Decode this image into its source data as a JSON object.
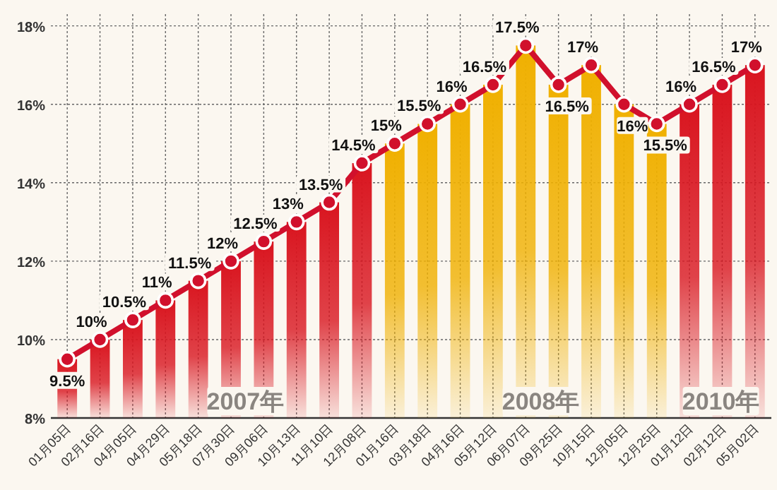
{
  "chart_data": {
    "type": "bar",
    "categories": [
      "01月05日",
      "02月16日",
      "04月05日",
      "04月29日",
      "05月18日",
      "07月30日",
      "09月06日",
      "10月13日",
      "11月10日",
      "12月08日",
      "01月16日",
      "03月18日",
      "04月16日",
      "05月12日",
      "06月07日",
      "09月25日",
      "10月15日",
      "12月05日",
      "12月25日",
      "01月12日",
      "02月12日",
      "05月02日"
    ],
    "series": [
      {
        "values": [
          9.5,
          10,
          10.5,
          11,
          11.5,
          12,
          12.5,
          13,
          13.5,
          14.5,
          15,
          15.5,
          16,
          16.5,
          17.5,
          16.5,
          17,
          16,
          15.5,
          16,
          16.5,
          17
        ],
        "colors": [
          "#d9151f",
          "#d9151f",
          "#d9151f",
          "#d9151f",
          "#d9151f",
          "#d9151f",
          "#d9151f",
          "#d9151f",
          "#d9151f",
          "#d9151f",
          "#f0b000",
          "#f0b000",
          "#f0b000",
          "#f0b000",
          "#f0b000",
          "#f0b000",
          "#f0b000",
          "#f0b000",
          "#f0b000",
          "#d9151f",
          "#d9151f",
          "#d9151f"
        ]
      },
      {
        "type": "line",
        "color": "#d1102c",
        "marker": "circle",
        "values": [
          9.5,
          10,
          10.5,
          11,
          11.5,
          12,
          12.5,
          13,
          13.5,
          14.5,
          15,
          15.5,
          16,
          16.5,
          17.5,
          16.5,
          17,
          16,
          15.5,
          16,
          16.5,
          17
        ],
        "value_labels": [
          "9.5%",
          "10%",
          "10.5%",
          "11%",
          "11.5%",
          "12%",
          "12.5%",
          "13%",
          "13.5%",
          "14.5%",
          "15%",
          "15.5%",
          "16%",
          "16.5%",
          "17.5%",
          "16.5%",
          "17%",
          "16%",
          "15.5%",
          "16%",
          "16.5%",
          "17%"
        ]
      }
    ],
    "ylim": [
      8,
      18.3
    ],
    "yticks": [
      {
        "value": 8,
        "label": "8%"
      },
      {
        "value": 10,
        "label": "10%"
      },
      {
        "value": 12,
        "label": "12%"
      },
      {
        "value": 14,
        "label": "14%"
      },
      {
        "value": 16,
        "label": "16%"
      },
      {
        "value": 18,
        "label": "18%"
      }
    ],
    "grid": true,
    "annotations": [
      "2007年",
      "2008年",
      "2010年"
    ]
  }
}
